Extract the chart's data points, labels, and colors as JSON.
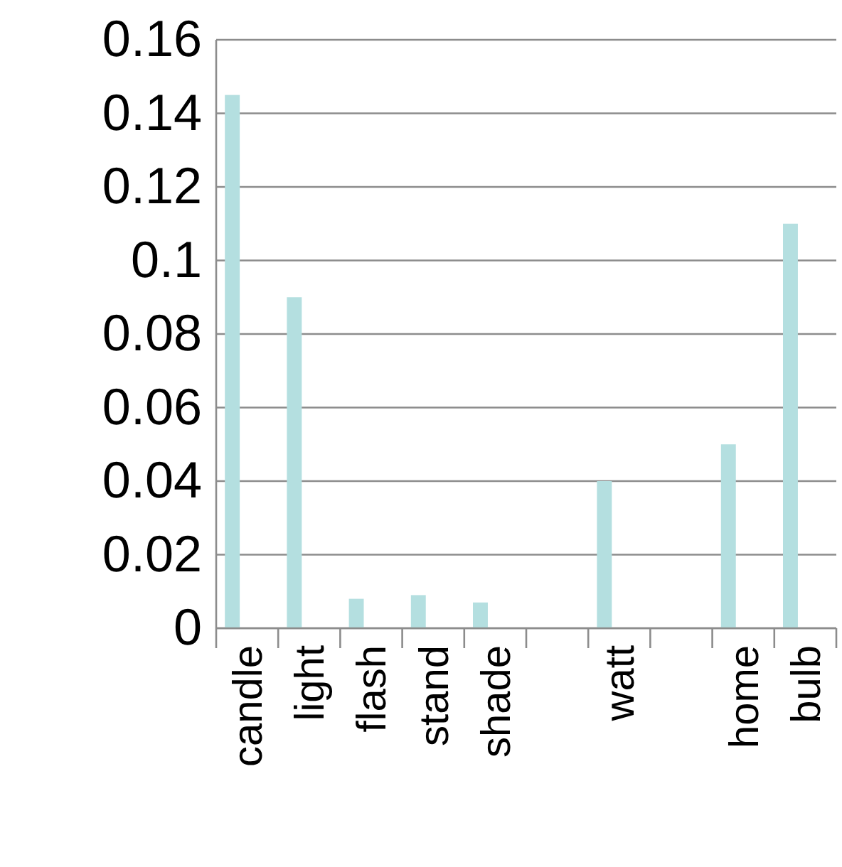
{
  "chart_data": {
    "type": "bar",
    "categories": [
      "candle",
      "light",
      "flash",
      "stand",
      "shade",
      null,
      "watt",
      null,
      "home",
      "bulb"
    ],
    "values": [
      0.145,
      0.09,
      0.008,
      0.009,
      0.007,
      null,
      0.04,
      null,
      0.05,
      0.11
    ],
    "color": "#b4dfe0",
    "ylim": [
      0,
      0.16
    ],
    "yticks": [
      0,
      0.02,
      0.04,
      0.06,
      0.08,
      0.1,
      0.12,
      0.14,
      0.16
    ],
    "grid": "y"
  }
}
